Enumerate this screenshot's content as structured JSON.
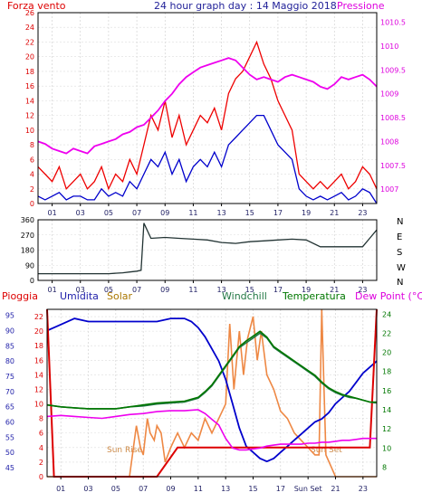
{
  "panel_top": {
    "title": "24 hour graph day : 14 Maggio 2018",
    "left_label": "Forza vento",
    "right_label": "Pressione",
    "colors": {
      "left": "#dd0000",
      "right": "#dd00dd",
      "title": "#222299"
    }
  },
  "panel_bottom": {
    "labels": {
      "pioggia": "Pioggia",
      "umidita": "Umidita",
      "solar": "Solar",
      "windchill": "Windchill",
      "temperatura": "Temperatura",
      "dewpoint": "Dew Point (°C)"
    },
    "annotations": {
      "sun_rise": "Sun Rise",
      "sun_set": "Sun Set"
    },
    "colors": {
      "pioggia": "#dd0000",
      "umidita": "#2222aa",
      "solar": "#aa7700",
      "windchill": "#227744",
      "temperatura": "#007700",
      "dewpoint": "#dd00dd"
    }
  },
  "chart_data": [
    {
      "type": "line",
      "name": "wind-pressure",
      "title": "24 hour graph day : 14 Maggio 2018",
      "x_ticks": [
        "01",
        "03",
        "05",
        "07",
        "09",
        "11",
        "13",
        "15",
        "17",
        "19",
        "21",
        "23"
      ],
      "y_left": {
        "label": "Forza vento",
        "ylim": [
          0,
          26
        ],
        "ticks": [
          0,
          2,
          4,
          6,
          8,
          10,
          12,
          14,
          16,
          18,
          20,
          22,
          24,
          26
        ]
      },
      "y_right": {
        "label": "Pressione",
        "ylim": [
          1006.7,
          1010.7
        ],
        "ticks": [
          "1007",
          "1007.5",
          "1008",
          "1008.5",
          "1009",
          "1009.5",
          "1010",
          "1010.5"
        ]
      },
      "grid": true,
      "series": [
        {
          "axis": "left",
          "color": "#ee0000",
          "x": [
            0,
            0.5,
            1,
            1.5,
            2,
            2.5,
            3,
            3.5,
            4,
            4.5,
            5,
            5.5,
            6,
            6.5,
            7,
            7.5,
            8,
            8.5,
            9,
            9.5,
            10,
            10.5,
            11,
            11.5,
            12,
            12.5,
            13,
            13.5,
            14,
            14.5,
            15,
            15.5,
            16,
            16.5,
            17,
            17.5,
            18,
            18.5,
            19,
            19.5,
            20,
            20.5,
            21,
            21.5,
            22,
            22.5,
            23,
            23.5,
            24
          ],
          "y": [
            5,
            4,
            3,
            5,
            2,
            3,
            4,
            2,
            3,
            5,
            2,
            4,
            3,
            6,
            4,
            8,
            12,
            10,
            14,
            9,
            12,
            8,
            10,
            12,
            11,
            13,
            10,
            15,
            17,
            18,
            20,
            22,
            19,
            17,
            14,
            12,
            10,
            4,
            3,
            2,
            3,
            2,
            3,
            4,
            2,
            3,
            5,
            4,
            2
          ]
        },
        {
          "axis": "left",
          "color": "#0000cc",
          "x": [
            0,
            0.5,
            1,
            1.5,
            2,
            2.5,
            3,
            3.5,
            4,
            4.5,
            5,
            5.5,
            6,
            6.5,
            7,
            7.5,
            8,
            8.5,
            9,
            9.5,
            10,
            10.5,
            11,
            11.5,
            12,
            12.5,
            13,
            13.5,
            14,
            14.5,
            15,
            15.5,
            16,
            16.5,
            17,
            17.5,
            18,
            18.5,
            19,
            19.5,
            20,
            20.5,
            21,
            21.5,
            22,
            22.5,
            23,
            23.5,
            24
          ],
          "y": [
            1,
            0.5,
            1,
            1.5,
            0.5,
            1,
            1,
            0.5,
            0.5,
            2,
            1,
            1.5,
            1,
            3,
            2,
            4,
            6,
            5,
            7,
            4,
            6,
            3,
            5,
            6,
            5,
            7,
            5,
            8,
            9,
            10,
            11,
            12,
            12,
            10,
            8,
            7,
            6,
            2,
            1,
            0.5,
            1,
            0.5,
            1,
            1.5,
            0.5,
            1,
            2,
            1.5,
            0
          ]
        },
        {
          "axis": "right",
          "color": "#ee00ee",
          "x": [
            0,
            0.5,
            1,
            1.5,
            2,
            2.5,
            3,
            3.5,
            4,
            4.5,
            5,
            5.5,
            6,
            6.5,
            7,
            7.5,
            8,
            8.5,
            9,
            9.5,
            10,
            10.5,
            11,
            11.5,
            12,
            12.5,
            13,
            13.5,
            14,
            14.5,
            15,
            15.5,
            16,
            16.5,
            17,
            17.5,
            18,
            18.5,
            19,
            19.5,
            20,
            20.5,
            21,
            21.5,
            22,
            22.5,
            23,
            23.5,
            24
          ],
          "y": [
            1008.0,
            1007.95,
            1007.85,
            1007.8,
            1007.75,
            1007.85,
            1007.8,
            1007.75,
            1007.9,
            1007.95,
            1008.0,
            1008.05,
            1008.15,
            1008.2,
            1008.3,
            1008.35,
            1008.5,
            1008.65,
            1008.85,
            1009.0,
            1009.2,
            1009.35,
            1009.45,
            1009.55,
            1009.6,
            1009.65,
            1009.7,
            1009.75,
            1009.7,
            1009.55,
            1009.4,
            1009.3,
            1009.35,
            1009.3,
            1009.25,
            1009.35,
            1009.4,
            1009.35,
            1009.3,
            1009.25,
            1009.15,
            1009.1,
            1009.2,
            1009.35,
            1009.3,
            1009.35,
            1009.4,
            1009.3,
            1009.15
          ]
        }
      ]
    },
    {
      "type": "line",
      "name": "wind-direction",
      "x_ticks": [
        "01",
        "03",
        "05",
        "07",
        "09",
        "11",
        "13",
        "15",
        "17",
        "19",
        "21",
        "23"
      ],
      "y_left": {
        "ylim": [
          0,
          360
        ],
        "ticks": [
          0,
          90,
          180,
          270,
          360
        ]
      },
      "y_right_labels": [
        "N",
        "W",
        "S",
        "E",
        "N"
      ],
      "grid": true,
      "series": [
        {
          "color": "#223333",
          "x": [
            0,
            1,
            2,
            3,
            4,
            5,
            6,
            6.5,
            7,
            7.3,
            7.5,
            8,
            9,
            10,
            11,
            12,
            13,
            14,
            15,
            16,
            17,
            18,
            19,
            20,
            21,
            22,
            23,
            23.5,
            24
          ],
          "y": [
            40,
            40,
            40,
            40,
            40,
            40,
            45,
            50,
            55,
            60,
            340,
            250,
            255,
            250,
            245,
            240,
            225,
            220,
            230,
            235,
            240,
            245,
            240,
            200,
            200,
            200,
            200,
            250,
            300
          ]
        }
      ]
    },
    {
      "type": "line",
      "name": "rain-humidity-temp",
      "x_ticks": [
        "01",
        "03",
        "05",
        "07",
        "09",
        "11",
        "13",
        "15",
        "17",
        "Sun Set",
        "21",
        "23"
      ],
      "y_rain": {
        "label": "Pioggia",
        "ylim": [
          0,
          23
        ],
        "ticks": [
          0,
          2,
          4,
          6,
          8,
          10,
          12,
          14,
          16,
          18,
          20,
          22
        ]
      },
      "y_humidity": {
        "label": "Umidita",
        "ylim": [
          42,
          97
        ],
        "ticks": [
          45,
          50,
          55,
          60,
          65,
          70,
          75,
          80,
          85,
          90,
          95
        ]
      },
      "y_temp": {
        "label": "Temperatura",
        "ylim": [
          7,
          24.5
        ],
        "ticks": [
          8,
          10,
          12,
          14,
          16,
          18,
          20,
          22,
          24
        ]
      },
      "grid": true,
      "series": [
        {
          "name": "Umidita",
          "axis": "humidity",
          "color": "#0000cc",
          "x": [
            0,
            0.5,
            1,
            2,
            3,
            4,
            5,
            6,
            7,
            8,
            9,
            10,
            10.5,
            11,
            11.5,
            12,
            12.5,
            13,
            13.5,
            14,
            14.5,
            15,
            15.5,
            16,
            16.5,
            17,
            17.5,
            18,
            18.5,
            19,
            19.5,
            20,
            20.5,
            21,
            21.5,
            22,
            22.5,
            23,
            23.5,
            24
          ],
          "y": [
            90,
            91,
            92,
            94,
            93,
            93,
            93,
            93,
            93,
            93,
            94,
            94,
            93,
            91,
            88,
            84,
            80,
            74,
            66,
            58,
            52,
            50,
            48,
            47,
            48,
            50,
            52,
            54,
            56,
            58,
            60,
            61,
            63,
            66,
            68,
            70,
            73,
            76,
            78,
            80
          ]
        },
        {
          "name": "Solar",
          "axis": "rain",
          "color": "#ee8844",
          "x": [
            0,
            6,
            6.5,
            6.8,
            7,
            7.3,
            7.5,
            7.8,
            8,
            8.3,
            8.6,
            9,
            9.5,
            10,
            10.5,
            11,
            11.5,
            12,
            12.5,
            13,
            13.3,
            13.6,
            14,
            14.3,
            14.6,
            15,
            15.3,
            15.6,
            16,
            16.5,
            17,
            17.5,
            18,
            18.5,
            19,
            19.5,
            19.8,
            20,
            20.3,
            21,
            22,
            23,
            24
          ],
          "y": [
            0,
            0,
            7,
            4,
            3,
            8,
            6,
            5,
            7,
            6,
            2,
            4,
            6,
            4,
            6,
            5,
            8,
            6,
            8,
            10,
            21,
            12,
            20,
            14,
            19,
            22,
            16,
            20,
            14,
            12,
            9,
            8,
            6,
            5,
            4,
            3,
            3,
            23,
            3,
            0,
            0,
            0,
            0
          ]
        },
        {
          "name": "Pioggia",
          "axis": "rain",
          "color": "#dd0000",
          "x": [
            0,
            0.5,
            1,
            7.5,
            7.9,
            8,
            9.5,
            10,
            12,
            14,
            16,
            18,
            20,
            22,
            23.5,
            24
          ],
          "y": [
            23,
            0,
            0,
            0,
            0,
            0,
            4,
            4,
            4,
            4,
            4,
            4,
            4,
            4,
            4,
            23
          ]
        },
        {
          "name": "Windchill",
          "axis": "temp",
          "color": "#227744",
          "x": [
            0,
            1,
            2,
            3,
            4,
            5,
            6,
            7,
            8,
            9,
            10,
            11,
            11.5,
            12,
            12.5,
            13,
            13.5,
            14,
            14.5,
            15,
            15.5,
            16,
            16.5,
            17,
            17.5,
            18,
            18.5,
            19,
            19.5,
            20,
            20.5,
            21,
            21.5,
            22,
            22.5,
            23,
            23.5,
            24
          ],
          "y": [
            14.5,
            14.3,
            14.2,
            14.1,
            14.1,
            14.1,
            14.3,
            14.4,
            14.6,
            14.7,
            14.8,
            15.2,
            15.8,
            16.5,
            17.5,
            18.5,
            19.5,
            20.5,
            21.0,
            21.5,
            22.0,
            21.5,
            20.5,
            20.0,
            19.5,
            19.0,
            18.5,
            18.0,
            17.5,
            16.8,
            16.2,
            15.8,
            15.5,
            15.3,
            15.2,
            15.0,
            14.8,
            14.7
          ]
        },
        {
          "name": "Temperatura",
          "axis": "temp",
          "color": "#007700",
          "x": [
            0,
            1,
            2,
            3,
            4,
            5,
            6,
            7,
            8,
            9,
            10,
            11,
            11.5,
            12,
            12.5,
            13,
            13.5,
            14,
            14.5,
            15,
            15.5,
            16,
            16.5,
            17,
            17.5,
            18,
            18.5,
            19,
            19.5,
            20,
            20.5,
            21,
            21.5,
            22,
            22.5,
            23,
            23.5,
            24
          ],
          "y": [
            14.5,
            14.3,
            14.2,
            14.1,
            14.1,
            14.1,
            14.3,
            14.5,
            14.7,
            14.8,
            14.9,
            15.3,
            15.9,
            16.6,
            17.6,
            18.6,
            19.6,
            20.6,
            21.2,
            21.7,
            22.2,
            21.6,
            20.6,
            20.1,
            19.6,
            19.1,
            18.6,
            18.1,
            17.6,
            16.9,
            16.3,
            15.9,
            15.6,
            15.4,
            15.2,
            15.0,
            14.8,
            14.8
          ]
        },
        {
          "name": "Dew Point",
          "axis": "temp",
          "color": "#ee00ee",
          "x": [
            0,
            1,
            2,
            3,
            4,
            5,
            6,
            7,
            8,
            9,
            10,
            11,
            11.5,
            12,
            12.5,
            13,
            13.5,
            14,
            14.5,
            15,
            15.5,
            16,
            16.5,
            17,
            17.5,
            18,
            18.5,
            19,
            19.5,
            20,
            20.5,
            21,
            21.5,
            22,
            22.5,
            23,
            23.5,
            24
          ],
          "y": [
            13.3,
            13.4,
            13.3,
            13.2,
            13.1,
            13.3,
            13.5,
            13.6,
            13.8,
            13.9,
            13.9,
            14.0,
            13.6,
            13.0,
            12.4,
            11.0,
            10.0,
            9.8,
            9.8,
            9.9,
            10.0,
            10.2,
            10.3,
            10.4,
            10.4,
            10.4,
            10.4,
            10.5,
            10.5,
            10.6,
            10.6,
            10.7,
            10.8,
            10.8,
            10.9,
            11.0,
            11.0,
            11.0
          ]
        }
      ]
    }
  ]
}
